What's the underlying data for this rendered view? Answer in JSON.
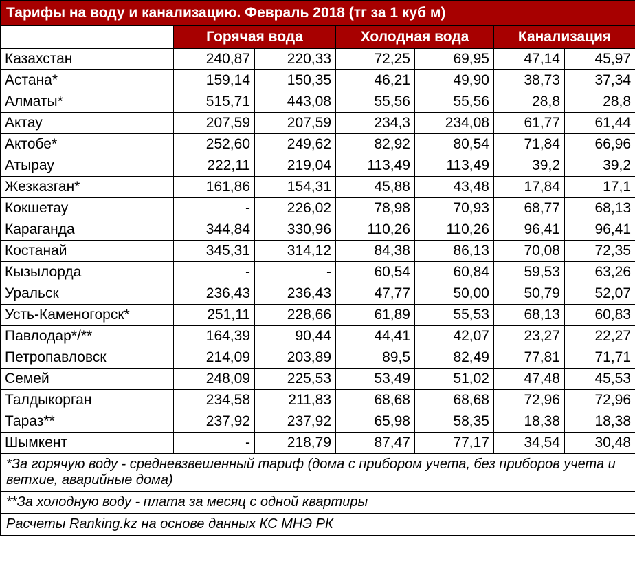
{
  "title": "Тарифы на воду и канализацию. Февраль 2018 (тг за 1 куб м)",
  "headers": {
    "hot": "Горячая вода",
    "cold": "Холодная вода",
    "sewer": "Канализация"
  },
  "columns": {
    "city_width": 252,
    "hot_col_width": 118,
    "cold_col_width": 115,
    "sewer_col_width": 103
  },
  "colors": {
    "header_bg": "#a70000",
    "header_text": "#ffffff",
    "cell_bg": "#ffffff",
    "cell_text": "#000000",
    "border": "#000000"
  },
  "typography": {
    "title_fontsize": 21,
    "header_fontsize": 21,
    "body_fontsize": 21,
    "footnote_fontsize": 20,
    "footnote_style": "italic"
  },
  "rows": [
    {
      "city": "Казахстан",
      "h1": "240,87",
      "h2": "220,33",
      "c1": "72,25",
      "c2": "69,95",
      "s1": "47,14",
      "s2": "45,97"
    },
    {
      "city": "Астана*",
      "h1": "159,14",
      "h2": "150,35",
      "c1": "46,21",
      "c2": "49,90",
      "s1": "38,73",
      "s2": "37,34"
    },
    {
      "city": "Алматы*",
      "h1": "515,71",
      "h2": "443,08",
      "c1": "55,56",
      "c2": "55,56",
      "s1": "28,8",
      "s2": "28,8"
    },
    {
      "city": "Актау",
      "h1": "207,59",
      "h2": "207,59",
      "c1": "234,3",
      "c2": "234,08",
      "s1": "61,77",
      "s2": "61,44"
    },
    {
      "city": "Актобе*",
      "h1": "252,60",
      "h2": "249,62",
      "c1": "82,92",
      "c2": "80,54",
      "s1": "71,84",
      "s2": "66,96"
    },
    {
      "city": "Атырау",
      "h1": "222,11",
      "h2": "219,04",
      "c1": "113,49",
      "c2": "113,49",
      "s1": "39,2",
      "s2": "39,2"
    },
    {
      "city": "Жезказган*",
      "h1": "161,86",
      "h2": "154,31",
      "c1": "45,88",
      "c2": "43,48",
      "s1": "17,84",
      "s2": "17,1"
    },
    {
      "city": "Кокшетау",
      "h1": "-",
      "h2": "226,02",
      "c1": "78,98",
      "c2": "70,93",
      "s1": "68,77",
      "s2": "68,13"
    },
    {
      "city": "Караганда",
      "h1": "344,84",
      "h2": "330,96",
      "c1": "110,26",
      "c2": "110,26",
      "s1": "96,41",
      "s2": "96,41"
    },
    {
      "city": "Костанай",
      "h1": "345,31",
      "h2": "314,12",
      "c1": "84,38",
      "c2": "86,13",
      "s1": "70,08",
      "s2": "72,35"
    },
    {
      "city": "Кызылорда",
      "h1": "-",
      "h2": "-",
      "c1": "60,54",
      "c2": "60,84",
      "s1": "59,53",
      "s2": "63,26"
    },
    {
      "city": "Уральск",
      "h1": "236,43",
      "h2": "236,43",
      "c1": "47,77",
      "c2": "50,00",
      "s1": "50,79",
      "s2": "52,07"
    },
    {
      "city": "Усть-Каменогорск*",
      "h1": "251,11",
      "h2": "228,66",
      "c1": "61,89",
      "c2": "55,53",
      "s1": "68,13",
      "s2": "60,83"
    },
    {
      "city": "Павлодар*/**",
      "h1": "164,39",
      "h2": "90,44",
      "c1": "44,41",
      "c2": "42,07",
      "s1": "23,27",
      "s2": "22,27"
    },
    {
      "city": "Петропавловск",
      "h1": "214,09",
      "h2": "203,89",
      "c1": "89,5",
      "c2": "82,49",
      "s1": "77,81",
      "s2": "71,71"
    },
    {
      "city": "Семей",
      "h1": "248,09",
      "h2": "225,53",
      "c1": "53,49",
      "c2": "51,02",
      "s1": "47,48",
      "s2": "45,53"
    },
    {
      "city": "Талдыкорган",
      "h1": "234,58",
      "h2": "211,83",
      "c1": "68,68",
      "c2": "68,68",
      "s1": "72,96",
      "s2": "72,96"
    },
    {
      "city": "Тараз**",
      "h1": "237,92",
      "h2": "237,92",
      "c1": "65,98",
      "c2": "58,35",
      "s1": "18,38",
      "s2": "18,38"
    },
    {
      "city": "Шымкент",
      "h1": "-",
      "h2": "218,79",
      "c1": "87,47",
      "c2": "77,17",
      "s1": "34,54",
      "s2": "30,48"
    }
  ],
  "footnotes": {
    "f1": "*За горячую воду - средневзвешенный тариф (дома с прибором учета, без  приборов учета и ветхие, аварийные дома)",
    "f2": "**За холодную воду - плата за месяц с одной квартиры",
    "f3": "Расчеты Ranking.kz на основе данных КС МНЭ РК"
  }
}
